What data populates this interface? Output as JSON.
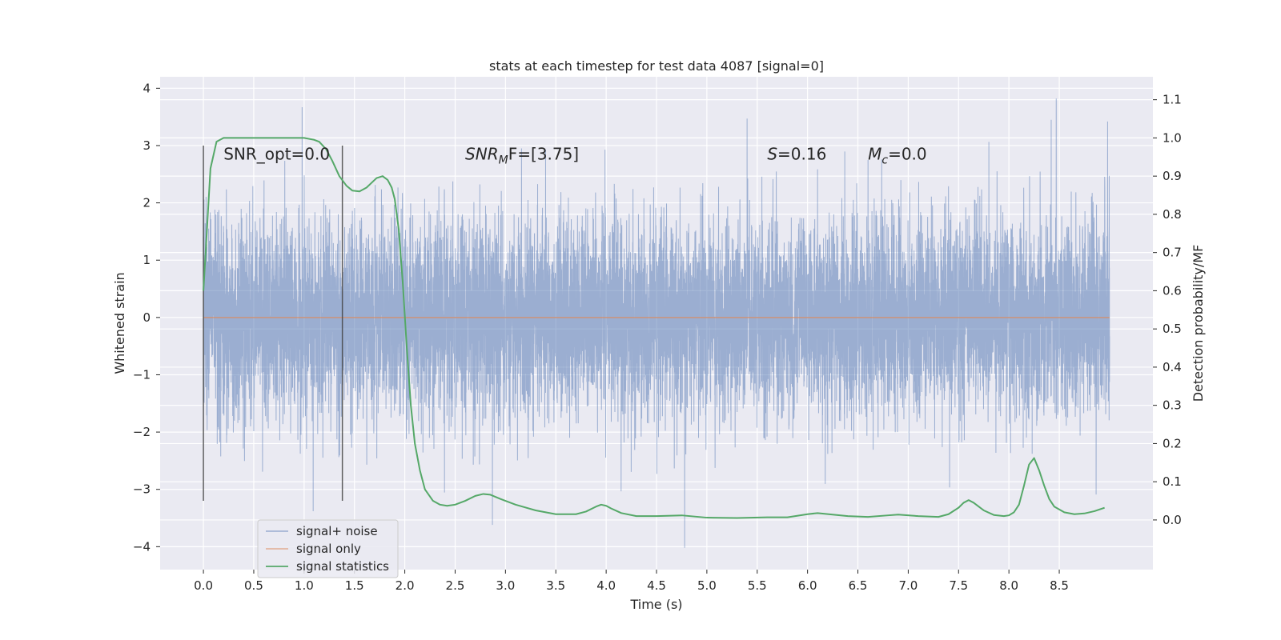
{
  "chart_data": {
    "type": "line",
    "title": "stats at each timestep for test data 4087 [signal=0]",
    "xlabel": "Time (s)",
    "ylabel": "Whitened strain",
    "y2label": "Detection probability/MF",
    "xlim": [
      -0.43,
      9.43
    ],
    "ylim": [
      -4.4,
      4.2
    ],
    "y2lim": [
      -0.13,
      1.16
    ],
    "xticks": [
      0.0,
      0.5,
      1.0,
      1.5,
      2.0,
      2.5,
      3.0,
      3.5,
      4.0,
      4.5,
      5.0,
      5.5,
      6.0,
      6.5,
      7.0,
      7.5,
      8.0,
      8.5
    ],
    "xtick_labels": [
      "0.0",
      "0.5",
      "1.0",
      "1.5",
      "2.0",
      "2.5",
      "3.0",
      "3.5",
      "4.0",
      "4.5",
      "5.0",
      "5.5",
      "6.0",
      "6.5",
      "7.0",
      "7.5",
      "8.0",
      "8.5"
    ],
    "yticks": [
      4,
      3,
      2,
      1,
      0,
      -1,
      -2,
      -3,
      -4
    ],
    "ytick_labels": [
      "4",
      "3",
      "2",
      "1",
      "0",
      "−1",
      "−2",
      "−3",
      "−4"
    ],
    "y2ticks": [
      1.1,
      1.0,
      0.9,
      0.8,
      0.7,
      0.6,
      0.5,
      0.4,
      0.3,
      0.2,
      0.1,
      0.0
    ],
    "y2tick_labels": [
      "1.1",
      "1.0",
      "0.9",
      "0.8",
      "0.7",
      "0.6",
      "0.5",
      "0.4",
      "0.3",
      "0.2",
      "0.1",
      "0.0"
    ],
    "grid": true,
    "legend_position": "lower-left",
    "vertical_lines": [
      {
        "x": 0.0,
        "ymin": -3.2,
        "ymax": 3.0
      },
      {
        "x": 1.38,
        "ymin": -3.2,
        "ymax": 3.0
      }
    ],
    "series": [
      {
        "name": "signal+ noise",
        "color": "#4c72b0",
        "opacity": 0.5,
        "x_range": [
          0.0,
          9.0
        ],
        "typical_range": [
          -1.2,
          1.2
        ],
        "envelope_range": [
          -2.8,
          2.8
        ],
        "extremes": [
          {
            "x": 0.98,
            "y": 3.67
          },
          {
            "x": 1.09,
            "y": -3.38
          },
          {
            "x": 2.87,
            "y": -3.62
          },
          {
            "x": 4.78,
            "y": -4.02
          },
          {
            "x": 8.47,
            "y": 3.82
          },
          {
            "x": 8.42,
            "y": 3.45
          },
          {
            "x": 8.98,
            "y": 3.42
          },
          {
            "x": 5.4,
            "y": 3.47
          }
        ]
      },
      {
        "name": "signal only",
        "color": "#dd8452",
        "x": [
          0.0,
          9.0
        ],
        "y": [
          0.0,
          0.0
        ]
      },
      {
        "name": "signal statistics",
        "color": "#55a868",
        "axis": "right",
        "x": [
          0.0,
          0.07,
          0.13,
          0.2,
          0.3,
          0.45,
          0.6,
          0.8,
          1.0,
          1.1,
          1.15,
          1.22,
          1.28,
          1.35,
          1.42,
          1.48,
          1.55,
          1.62,
          1.68,
          1.72,
          1.78,
          1.83,
          1.87,
          1.9,
          1.94,
          1.98,
          2.02,
          2.06,
          2.1,
          2.15,
          2.2,
          2.28,
          2.35,
          2.42,
          2.5,
          2.6,
          2.7,
          2.78,
          2.85,
          2.95,
          3.1,
          3.3,
          3.5,
          3.7,
          3.8,
          3.9,
          3.95,
          4.0,
          4.05,
          4.15,
          4.3,
          4.5,
          4.75,
          5.0,
          5.3,
          5.6,
          5.8,
          6.0,
          6.1,
          6.25,
          6.4,
          6.6,
          6.8,
          6.9,
          7.1,
          7.3,
          7.4,
          7.5,
          7.55,
          7.6,
          7.65,
          7.75,
          7.85,
          7.95,
          8.0,
          8.05,
          8.1,
          8.15,
          8.2,
          8.25,
          8.3,
          8.35,
          8.4,
          8.45,
          8.55,
          8.65,
          8.75,
          8.85,
          8.95
        ],
        "y": [
          0.6,
          0.92,
          0.99,
          1.0,
          1.0,
          1.0,
          1.0,
          1.0,
          1.0,
          0.995,
          0.99,
          0.97,
          0.94,
          0.9,
          0.875,
          0.862,
          0.86,
          0.87,
          0.885,
          0.895,
          0.9,
          0.89,
          0.87,
          0.84,
          0.76,
          0.62,
          0.45,
          0.3,
          0.2,
          0.13,
          0.08,
          0.05,
          0.04,
          0.037,
          0.04,
          0.05,
          0.063,
          0.068,
          0.066,
          0.055,
          0.04,
          0.025,
          0.015,
          0.015,
          0.022,
          0.035,
          0.04,
          0.037,
          0.03,
          0.018,
          0.01,
          0.01,
          0.012,
          0.006,
          0.005,
          0.007,
          0.007,
          0.015,
          0.018,
          0.014,
          0.01,
          0.008,
          0.012,
          0.014,
          0.01,
          0.008,
          0.015,
          0.032,
          0.045,
          0.052,
          0.045,
          0.025,
          0.013,
          0.01,
          0.012,
          0.02,
          0.04,
          0.09,
          0.145,
          0.162,
          0.13,
          0.09,
          0.055,
          0.035,
          0.02,
          0.015,
          0.017,
          0.023,
          0.032
        ]
      }
    ],
    "annotations": [
      {
        "x": 0.2,
        "y": 2.85,
        "text": "SNR_opt=0.0"
      },
      {
        "x": 2.6,
        "y": 2.85,
        "base": "SNR",
        "sub": "M",
        "tail": "F=[3.75]"
      },
      {
        "x": 5.6,
        "y": 2.85,
        "base": "S",
        "tail": "=0.16"
      },
      {
        "x": 6.6,
        "y": 2.85,
        "base": "M",
        "sub": "c",
        "tail": "=0.0"
      }
    ]
  }
}
